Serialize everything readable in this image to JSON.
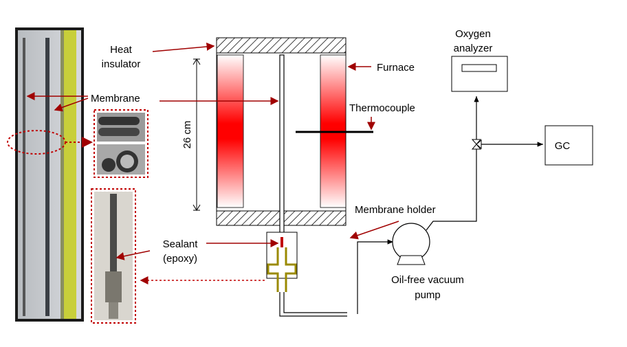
{
  "labels": {
    "heat_insulator": [
      "Heat",
      "insulator"
    ],
    "furnace": "Furnace",
    "membrane": "Membrane",
    "thermocouple": "Thermocouple",
    "length": "26 cm",
    "membrane_holder": "Membrane holder",
    "sealant": [
      "Sealant",
      "(epoxy)"
    ],
    "pump": [
      "Oil-free vacuum",
      "pump"
    ],
    "oxygen_analyzer": [
      "Oxygen",
      "analyzer"
    ],
    "gc": "GC"
  }
}
